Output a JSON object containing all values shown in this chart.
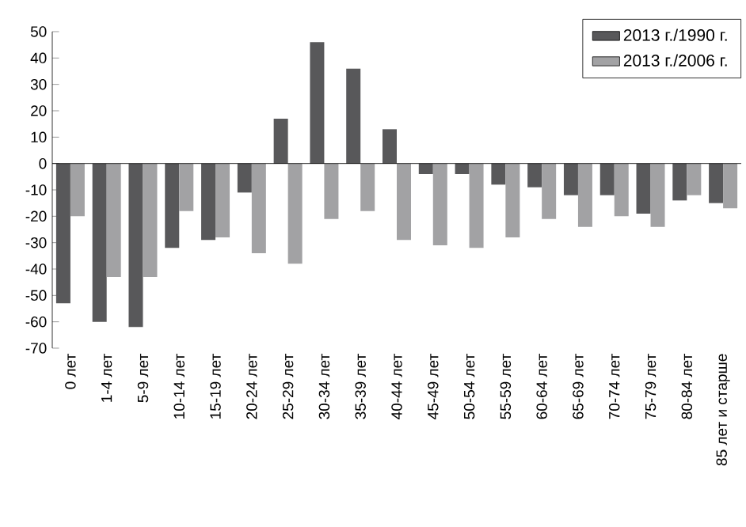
{
  "chart_data": {
    "type": "bar",
    "categories": [
      "0 лет",
      "1-4 лет",
      "5-9 лет",
      "10-14 лет",
      "15-19 лет",
      "20-24 лет",
      "25-29 лет",
      "30-34 лет",
      "35-39 лет",
      "40-44 лет",
      "45-49 лет",
      "50-54 лет",
      "55-59 лет",
      "60-64 лет",
      "65-69 лет",
      "70-74 лет",
      "75-79 лет",
      "80-84 лет",
      "85 лет и старше"
    ],
    "series": [
      {
        "name": "2013 г./1990 г.",
        "color": "#58585a",
        "values": [
          -53,
          -60,
          -62,
          -32,
          -29,
          -11,
          17,
          46,
          36,
          13,
          -4,
          -4,
          -8,
          -9,
          -12,
          -12,
          -19,
          -14,
          -15
        ]
      },
      {
        "name": "2013 г./2006 г.",
        "color": "#a2a2a4",
        "values": [
          -20,
          -43,
          -43,
          -18,
          -28,
          -34,
          -38,
          -21,
          -18,
          -29,
          -31,
          -32,
          -28,
          -21,
          -24,
          -20,
          -24,
          -12,
          -17
        ]
      }
    ],
    "ylim": [
      -70,
      50
    ],
    "yticks": [
      -70,
      -60,
      -50,
      -40,
      -30,
      -20,
      -10,
      0,
      10,
      20,
      30,
      40,
      50
    ],
    "legend": "top right"
  }
}
